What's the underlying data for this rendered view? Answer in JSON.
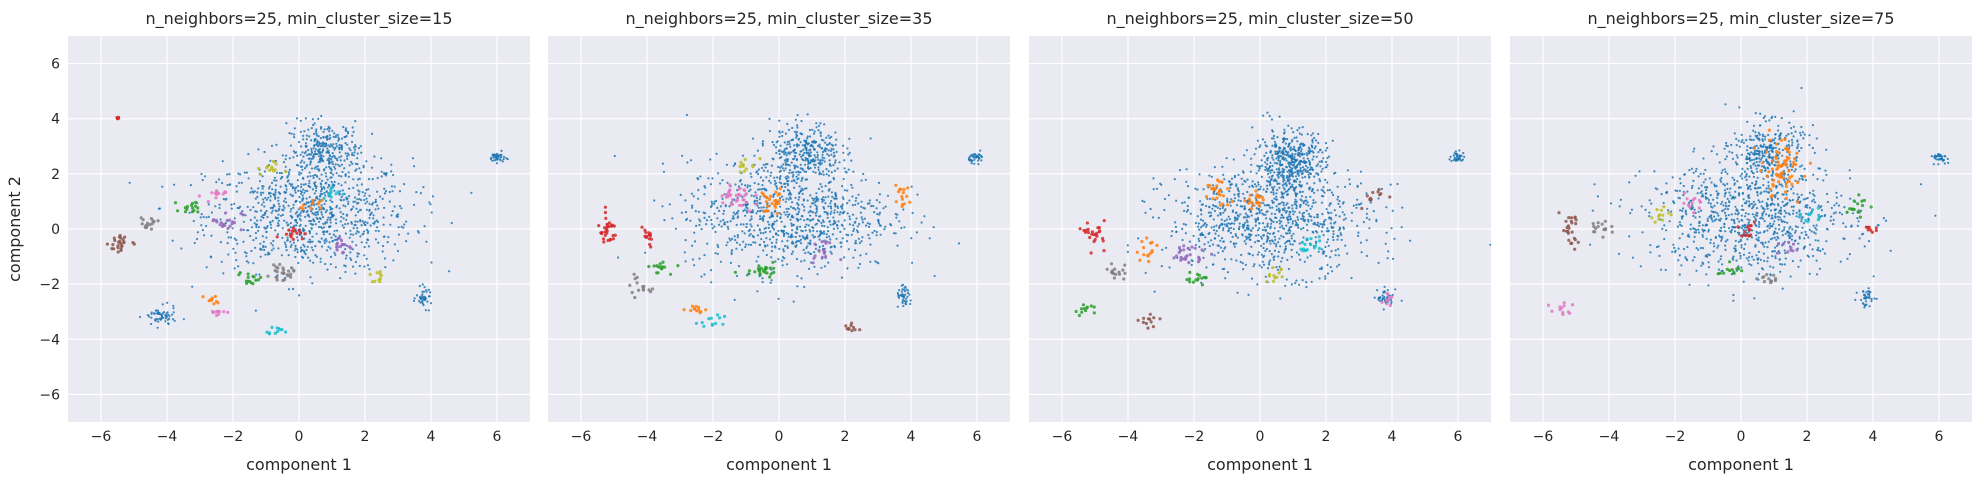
{
  "figure": {
    "ylabel": "component 2",
    "xlabel": "component 1",
    "xticks": [
      -6,
      -4,
      -2,
      0,
      2,
      4,
      6
    ],
    "yticks": [
      -6,
      -4,
      -2,
      0,
      2,
      4,
      6
    ],
    "xlim": [
      -7,
      7
    ],
    "ylim": [
      -7,
      7
    ],
    "grid": true,
    "background": "#eaeaf2",
    "palette": [
      "#1f77b4",
      "#ff7f0e",
      "#2ca02c",
      "#d62728",
      "#9467bd",
      "#8c564b",
      "#e377c2",
      "#7f7f7f",
      "#bcbd22",
      "#17becf"
    ]
  },
  "chart_data": [
    {
      "type": "scatter",
      "title": "n_neighbors=25, min_cluster_size=15",
      "xlabel": "component 1",
      "ylabel": "component 2",
      "xlim": [
        -7,
        7
      ],
      "ylim": [
        -7,
        7
      ],
      "clusters": [
        {
          "color": "#1f77b4",
          "center": [
            0.3,
            0.5
          ],
          "spread": [
            2.6,
            1.7
          ],
          "n": 900
        },
        {
          "color": "#1f77b4",
          "center": [
            0.8,
            2.8
          ],
          "spread": [
            0.9,
            0.9
          ],
          "n": 300
        },
        {
          "color": "#1f77b4",
          "center": [
            6.0,
            2.6
          ],
          "spread": [
            0.2,
            0.15
          ],
          "n": 40
        },
        {
          "color": "#1f77b4",
          "center": [
            3.8,
            -2.5
          ],
          "spread": [
            0.2,
            0.3
          ],
          "n": 40
        },
        {
          "color": "#1f77b4",
          "center": [
            -4.2,
            -3.2
          ],
          "spread": [
            0.4,
            0.3
          ],
          "n": 60
        },
        {
          "color": "#8c564b",
          "center": [
            -5.4,
            -0.5
          ],
          "spread": [
            0.3,
            0.4
          ],
          "n": 25
        },
        {
          "color": "#7f7f7f",
          "center": [
            -0.5,
            -1.6
          ],
          "spread": [
            0.3,
            0.2
          ],
          "n": 25
        },
        {
          "color": "#7f7f7f",
          "center": [
            -4.6,
            0.2
          ],
          "spread": [
            0.25,
            0.2
          ],
          "n": 15
        },
        {
          "color": "#2ca02c",
          "center": [
            -3.2,
            0.8
          ],
          "spread": [
            0.3,
            0.2
          ],
          "n": 15
        },
        {
          "color": "#2ca02c",
          "center": [
            -1.5,
            -1.8
          ],
          "spread": [
            0.3,
            0.2
          ],
          "n": 15
        },
        {
          "color": "#9467bd",
          "center": [
            -2.2,
            0.3
          ],
          "spread": [
            0.4,
            0.3
          ],
          "n": 20
        },
        {
          "color": "#9467bd",
          "center": [
            1.3,
            -0.6
          ],
          "spread": [
            0.3,
            0.3
          ],
          "n": 15
        },
        {
          "color": "#d62728",
          "center": [
            -0.2,
            -0.1
          ],
          "spread": [
            0.3,
            0.2
          ],
          "n": 15
        },
        {
          "color": "#d62728",
          "center": [
            -5.5,
            4.0
          ],
          "spread": [
            0.06,
            0.06
          ],
          "n": 5
        },
        {
          "color": "#e377c2",
          "center": [
            -2.6,
            1.2
          ],
          "spread": [
            0.3,
            0.2
          ],
          "n": 12
        },
        {
          "color": "#e377c2",
          "center": [
            -2.5,
            -3.0
          ],
          "spread": [
            0.2,
            0.15
          ],
          "n": 10
        },
        {
          "color": "#bcbd22",
          "center": [
            -0.9,
            2.2
          ],
          "spread": [
            0.3,
            0.2
          ],
          "n": 12
        },
        {
          "color": "#bcbd22",
          "center": [
            2.3,
            -1.8
          ],
          "spread": [
            0.2,
            0.2
          ],
          "n": 10
        },
        {
          "color": "#17becf",
          "center": [
            1.0,
            1.2
          ],
          "spread": [
            0.3,
            0.3
          ],
          "n": 12
        },
        {
          "color": "#17becf",
          "center": [
            -0.8,
            -3.7
          ],
          "spread": [
            0.25,
            0.15
          ],
          "n": 10
        },
        {
          "color": "#ff7f0e",
          "center": [
            0.4,
            0.8
          ],
          "spread": [
            0.25,
            0.2
          ],
          "n": 10
        },
        {
          "color": "#ff7f0e",
          "center": [
            -2.6,
            -2.6
          ],
          "spread": [
            0.2,
            0.15
          ],
          "n": 10
        }
      ]
    },
    {
      "type": "scatter",
      "title": "n_neighbors=25, min_cluster_size=35",
      "xlabel": "component 1",
      "ylabel": "",
      "xlim": [
        -7,
        7
      ],
      "ylim": [
        -7,
        7
      ],
      "clusters": [
        {
          "color": "#1f77b4",
          "center": [
            0.3,
            0.5
          ],
          "spread": [
            2.6,
            1.7
          ],
          "n": 900
        },
        {
          "color": "#1f77b4",
          "center": [
            0.8,
            2.8
          ],
          "spread": [
            0.9,
            0.9
          ],
          "n": 300
        },
        {
          "color": "#1f77b4",
          "center": [
            6.0,
            2.6
          ],
          "spread": [
            0.2,
            0.15
          ],
          "n": 40
        },
        {
          "color": "#1f77b4",
          "center": [
            3.8,
            -2.5
          ],
          "spread": [
            0.2,
            0.3
          ],
          "n": 40
        },
        {
          "color": "#d62728",
          "center": [
            -5.2,
            -0.1
          ],
          "spread": [
            0.25,
            0.45
          ],
          "n": 30
        },
        {
          "color": "#d62728",
          "center": [
            -4.0,
            -0.3
          ],
          "spread": [
            0.2,
            0.3
          ],
          "n": 15
        },
        {
          "color": "#e377c2",
          "center": [
            -1.3,
            1.1
          ],
          "spread": [
            0.45,
            0.5
          ],
          "n": 35
        },
        {
          "color": "#ff7f0e",
          "center": [
            -0.2,
            1.0
          ],
          "spread": [
            0.3,
            0.4
          ],
          "n": 25
        },
        {
          "color": "#ff7f0e",
          "center": [
            3.7,
            1.2
          ],
          "spread": [
            0.25,
            0.3
          ],
          "n": 15
        },
        {
          "color": "#ff7f0e",
          "center": [
            -2.5,
            -2.9
          ],
          "spread": [
            0.25,
            0.15
          ],
          "n": 12
        },
        {
          "color": "#2ca02c",
          "center": [
            -0.5,
            -1.4
          ],
          "spread": [
            0.5,
            0.25
          ],
          "n": 25
        },
        {
          "color": "#2ca02c",
          "center": [
            -3.6,
            -1.4
          ],
          "spread": [
            0.3,
            0.2
          ],
          "n": 15
        },
        {
          "color": "#7f7f7f",
          "center": [
            -4.3,
            -2.1
          ],
          "spread": [
            0.3,
            0.3
          ],
          "n": 15
        },
        {
          "color": "#9467bd",
          "center": [
            1.3,
            -0.8
          ],
          "spread": [
            0.3,
            0.3
          ],
          "n": 15
        },
        {
          "color": "#bcbd22",
          "center": [
            -1.0,
            2.3
          ],
          "spread": [
            0.3,
            0.2
          ],
          "n": 12
        },
        {
          "color": "#17becf",
          "center": [
            -2.0,
            -3.4
          ],
          "spread": [
            0.3,
            0.2
          ],
          "n": 12
        },
        {
          "color": "#8c564b",
          "center": [
            2.2,
            -3.6
          ],
          "spread": [
            0.2,
            0.15
          ],
          "n": 10
        }
      ]
    },
    {
      "type": "scatter",
      "title": "n_neighbors=25, min_cluster_size=50",
      "xlabel": "component 1",
      "ylabel": "",
      "xlim": [
        -7,
        7
      ],
      "ylim": [
        -7,
        7
      ],
      "clusters": [
        {
          "color": "#1f77b4",
          "center": [
            0.3,
            0.3
          ],
          "spread": [
            2.6,
            1.6
          ],
          "n": 900
        },
        {
          "color": "#1f77b4",
          "center": [
            0.9,
            2.4
          ],
          "spread": [
            0.9,
            1.0
          ],
          "n": 450
        },
        {
          "color": "#1f77b4",
          "center": [
            6.0,
            2.6
          ],
          "spread": [
            0.2,
            0.15
          ],
          "n": 40
        },
        {
          "color": "#1f77b4",
          "center": [
            3.8,
            -2.5
          ],
          "spread": [
            0.2,
            0.3
          ],
          "n": 40
        },
        {
          "color": "#ff7f0e",
          "center": [
            -1.3,
            1.3
          ],
          "spread": [
            0.35,
            0.5
          ],
          "n": 25
        },
        {
          "color": "#ff7f0e",
          "center": [
            -0.1,
            1.0
          ],
          "spread": [
            0.25,
            0.3
          ],
          "n": 20
        },
        {
          "color": "#ff7f0e",
          "center": [
            -3.4,
            -0.8
          ],
          "spread": [
            0.3,
            0.3
          ],
          "n": 15
        },
        {
          "color": "#d62728",
          "center": [
            -5.0,
            -0.2
          ],
          "spread": [
            0.25,
            0.4
          ],
          "n": 25
        },
        {
          "color": "#9467bd",
          "center": [
            -2.2,
            -0.9
          ],
          "spread": [
            0.45,
            0.3
          ],
          "n": 25
        },
        {
          "color": "#2ca02c",
          "center": [
            -1.9,
            -1.8
          ],
          "spread": [
            0.35,
            0.2
          ],
          "n": 15
        },
        {
          "color": "#2ca02c",
          "center": [
            -5.3,
            -2.9
          ],
          "spread": [
            0.3,
            0.2
          ],
          "n": 12
        },
        {
          "color": "#8c564b",
          "center": [
            -3.4,
            -3.3
          ],
          "spread": [
            0.3,
            0.2
          ],
          "n": 12
        },
        {
          "color": "#7f7f7f",
          "center": [
            -4.3,
            -1.6
          ],
          "spread": [
            0.3,
            0.3
          ],
          "n": 15
        },
        {
          "color": "#bcbd22",
          "center": [
            0.4,
            -1.7
          ],
          "spread": [
            0.3,
            0.2
          ],
          "n": 12
        },
        {
          "color": "#17becf",
          "center": [
            1.5,
            -0.6
          ],
          "spread": [
            0.3,
            0.3
          ],
          "n": 15
        },
        {
          "color": "#e377c2",
          "center": [
            3.9,
            -2.6
          ],
          "spread": [
            0.15,
            0.2
          ],
          "n": 10
        },
        {
          "color": "#8c564b",
          "center": [
            3.4,
            1.1
          ],
          "spread": [
            0.25,
            0.3
          ],
          "n": 12
        }
      ]
    },
    {
      "type": "scatter",
      "title": "n_neighbors=25, min_cluster_size=75",
      "xlabel": "component 1",
      "ylabel": "",
      "xlim": [
        -7,
        7
      ],
      "ylim": [
        -7,
        7
      ],
      "clusters": [
        {
          "color": "#1f77b4",
          "center": [
            0.3,
            0.4
          ],
          "spread": [
            2.6,
            1.7
          ],
          "n": 900
        },
        {
          "color": "#1f77b4",
          "center": [
            0.8,
            2.8
          ],
          "spread": [
            0.9,
            0.9
          ],
          "n": 300
        },
        {
          "color": "#1f77b4",
          "center": [
            6.0,
            2.6
          ],
          "spread": [
            0.2,
            0.15
          ],
          "n": 40
        },
        {
          "color": "#1f77b4",
          "center": [
            3.8,
            -2.5
          ],
          "spread": [
            0.2,
            0.3
          ],
          "n": 40
        },
        {
          "color": "#ff7f0e",
          "center": [
            1.2,
            2.2
          ],
          "spread": [
            0.55,
            0.9
          ],
          "n": 70
        },
        {
          "color": "#8c564b",
          "center": [
            -5.2,
            -0.1
          ],
          "spread": [
            0.25,
            0.5
          ],
          "n": 25
        },
        {
          "color": "#7f7f7f",
          "center": [
            -4.2,
            0.0
          ],
          "spread": [
            0.25,
            0.25
          ],
          "n": 15
        },
        {
          "color": "#7f7f7f",
          "center": [
            0.8,
            -1.8
          ],
          "spread": [
            0.3,
            0.2
          ],
          "n": 12
        },
        {
          "color": "#e377c2",
          "center": [
            -5.4,
            -2.9
          ],
          "spread": [
            0.3,
            0.2
          ],
          "n": 12
        },
        {
          "color": "#e377c2",
          "center": [
            -1.5,
            1.0
          ],
          "spread": [
            0.3,
            0.3
          ],
          "n": 12
        },
        {
          "color": "#2ca02c",
          "center": [
            3.5,
            0.8
          ],
          "spread": [
            0.3,
            0.3
          ],
          "n": 15
        },
        {
          "color": "#2ca02c",
          "center": [
            -0.3,
            -1.5
          ],
          "spread": [
            0.3,
            0.2
          ],
          "n": 12
        },
        {
          "color": "#d62728",
          "center": [
            0.1,
            0.0
          ],
          "spread": [
            0.25,
            0.2
          ],
          "n": 12
        },
        {
          "color": "#d62728",
          "center": [
            3.9,
            0.0
          ],
          "spread": [
            0.15,
            0.15
          ],
          "n": 8
        },
        {
          "color": "#bcbd22",
          "center": [
            -2.5,
            0.5
          ],
          "spread": [
            0.3,
            0.25
          ],
          "n": 12
        },
        {
          "color": "#17becf",
          "center": [
            2.2,
            0.5
          ],
          "spread": [
            0.3,
            0.25
          ],
          "n": 12
        },
        {
          "color": "#9467bd",
          "center": [
            1.4,
            -0.7
          ],
          "spread": [
            0.25,
            0.25
          ],
          "n": 10
        }
      ]
    }
  ]
}
